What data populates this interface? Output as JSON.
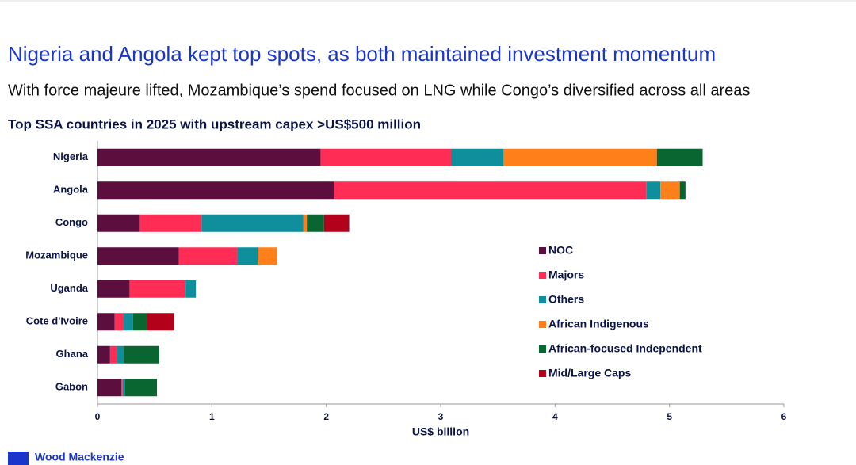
{
  "header": {
    "title": "Nigeria and Angola kept top spots, as both maintained investment momentum",
    "subtitle": "With force majeure lifted, Mozambique’s spend focused on LNG while Congo’s diversified across all areas"
  },
  "footer": {
    "logo": "Wood Mackenzie"
  },
  "chart_data": {
    "type": "stacked-horizontal-bar",
    "title": "Top SSA countries in 2025 with upstream capex >US$500 million",
    "x_label": "US$ billion",
    "categories": [
      "Nigeria",
      "Angola",
      "Congo",
      "Mozambique",
      "Uganda",
      "Cote d'Ivoire",
      "Ghana",
      "Gabon"
    ],
    "series": [
      {
        "name": "NOC",
        "color": "#5c0f3f",
        "values": [
          1.95,
          2.07,
          0.37,
          0.71,
          0.28,
          0.15,
          0.11,
          0.21
        ]
      },
      {
        "name": "Majors",
        "color": "#ff2d55",
        "values": [
          1.14,
          2.73,
          0.54,
          0.51,
          0.49,
          0.08,
          0.06,
          0.01
        ]
      },
      {
        "name": "Others",
        "color": "#0f8f9b",
        "values": [
          0.46,
          0.12,
          0.89,
          0.18,
          0.09,
          0.08,
          0.06,
          0.02
        ]
      },
      {
        "name": "African Indigenous",
        "color": "#ff7f1a",
        "values": [
          1.34,
          0.17,
          0.03,
          0.17,
          0,
          0,
          0,
          0
        ]
      },
      {
        "name": "African-focused Independent",
        "color": "#0a6630",
        "values": [
          0.4,
          0.05,
          0.15,
          0,
          0,
          0.12,
          0.31,
          0.28
        ]
      },
      {
        "name": "Mid/Large Caps",
        "color": "#b3001b",
        "values": [
          0,
          0,
          0.22,
          0,
          0,
          0.24,
          0,
          0
        ]
      }
    ],
    "xlim": [
      0,
      6
    ],
    "xticks": [
      0,
      1,
      2,
      3,
      4,
      5,
      6
    ]
  }
}
